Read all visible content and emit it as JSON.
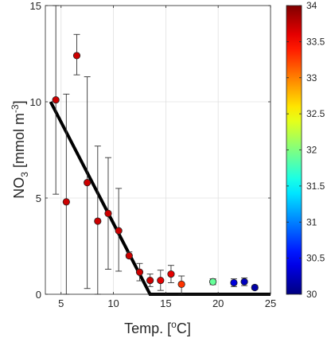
{
  "chart_data": {
    "type": "scatter",
    "xlabel_main": "Temp. [",
    "xlabel_sup": "o",
    "xlabel_tail": "C]",
    "ylabel_main": "NO",
    "ylabel_sub": "3",
    "ylabel_mid": " [mmol m",
    "ylabel_sup": "-3",
    "ylabel_tail": "]",
    "xlim": [
      3.5,
      25
    ],
    "ylim": [
      0,
      15
    ],
    "xticks": [
      5,
      10,
      15,
      20,
      25
    ],
    "xtick_labels": [
      "5",
      "10",
      "15",
      "20",
      "25"
    ],
    "yticks": [
      0,
      5,
      10,
      15
    ],
    "ytick_labels": [
      "0",
      "5",
      "10",
      "15"
    ],
    "grid": true,
    "points": [
      {
        "x": 4.5,
        "y": 10.1,
        "err_lo": 5.2,
        "err_hi": 15.0,
        "c": 33.7
      },
      {
        "x": 5.5,
        "y": 4.8,
        "err_lo": 0.0,
        "err_hi": 10.4,
        "c": 33.7
      },
      {
        "x": 6.5,
        "y": 12.4,
        "err_lo": 11.4,
        "err_hi": 13.5,
        "c": 33.7
      },
      {
        "x": 7.5,
        "y": 5.8,
        "err_lo": 0.3,
        "err_hi": 11.3,
        "c": 33.7
      },
      {
        "x": 8.5,
        "y": 3.8,
        "err_lo": 0.0,
        "err_hi": 7.7,
        "c": 33.7
      },
      {
        "x": 9.5,
        "y": 4.2,
        "err_lo": 1.3,
        "err_hi": 7.1,
        "c": 33.7
      },
      {
        "x": 10.5,
        "y": 3.3,
        "err_lo": 1.2,
        "err_hi": 5.5,
        "c": 33.7
      },
      {
        "x": 11.5,
        "y": 2.0,
        "err_lo": 1.9,
        "err_hi": 2.2,
        "c": 33.7
      },
      {
        "x": 12.5,
        "y": 1.15,
        "err_lo": 0.7,
        "err_hi": 1.6,
        "c": 33.7
      },
      {
        "x": 13.5,
        "y": 0.72,
        "err_lo": 0.4,
        "err_hi": 1.05,
        "c": 33.7
      },
      {
        "x": 14.5,
        "y": 0.72,
        "err_lo": 0.2,
        "err_hi": 1.25,
        "c": 33.6
      },
      {
        "x": 15.5,
        "y": 1.05,
        "err_lo": 0.6,
        "err_hi": 1.5,
        "c": 33.6
      },
      {
        "x": 16.5,
        "y": 0.52,
        "err_lo": 0.0,
        "err_hi": 0.95,
        "c": 33.3
      },
      {
        "x": 19.5,
        "y": 0.65,
        "err_lo": 0.5,
        "err_hi": 0.8,
        "c": 31.9
      },
      {
        "x": 21.5,
        "y": 0.6,
        "err_lo": 0.4,
        "err_hi": 0.8,
        "c": 30.35
      },
      {
        "x": 22.5,
        "y": 0.65,
        "err_lo": 0.45,
        "err_hi": 0.85,
        "c": 30.25
      },
      {
        "x": 23.5,
        "y": 0.35,
        "err_lo": 0.25,
        "err_hi": 0.45,
        "c": 30.15
      }
    ],
    "fit_line": [
      {
        "x": 4.0,
        "y": 10.0
      },
      {
        "x": 13.5,
        "y": 0.0
      },
      {
        "x": 25.0,
        "y": 0.0
      }
    ],
    "colorbar": {
      "colormap": "jet",
      "range": [
        30,
        34
      ],
      "ticks": [
        30,
        30.5,
        31,
        31.5,
        32,
        32.5,
        33,
        33.5,
        34
      ],
      "tick_labels": [
        "30",
        "30.5",
        "31",
        "31.5",
        "32",
        "32.5",
        "33",
        "33.5",
        "34"
      ],
      "placement": "right"
    }
  }
}
